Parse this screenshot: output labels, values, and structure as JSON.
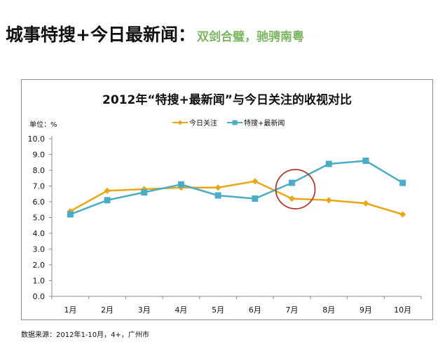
{
  "headline": {
    "main": "城事特搜+今日最新闻：",
    "sub": "双剑合璧，驰骋南粤"
  },
  "chart_data": {
    "type": "line",
    "title": "2012年“特搜+最新闻”与今日关注的收视对比",
    "unit_label": "单位：%",
    "categories": [
      "1月",
      "2月",
      "3月",
      "4月",
      "5月",
      "6月",
      "7月",
      "8月",
      "9月",
      "10月"
    ],
    "ylim": [
      0,
      10
    ],
    "yticks": [
      "0.0",
      "1.0",
      "2.0",
      "3.0",
      "4.0",
      "5.0",
      "6.0",
      "7.0",
      "8.0",
      "9.0",
      "10.0"
    ],
    "grid": false,
    "legend_position": "top",
    "series": [
      {
        "name": "今日关注",
        "color": "#e8a816",
        "marker": "diamond",
        "values": [
          5.4,
          6.7,
          6.8,
          6.9,
          6.9,
          7.3,
          6.2,
          6.1,
          5.9,
          5.2
        ]
      },
      {
        "name": "特搜+最新闻",
        "color": "#4bacc6",
        "marker": "square",
        "values": [
          5.2,
          6.1,
          6.6,
          7.1,
          6.4,
          6.2,
          7.2,
          8.4,
          8.6,
          7.2
        ]
      }
    ],
    "annotation": {
      "type": "circle",
      "category": "7月",
      "value": 6.8,
      "color": "#b03a2e"
    }
  },
  "footnote": "数据来源：2012年1-10月，4+，广州市"
}
